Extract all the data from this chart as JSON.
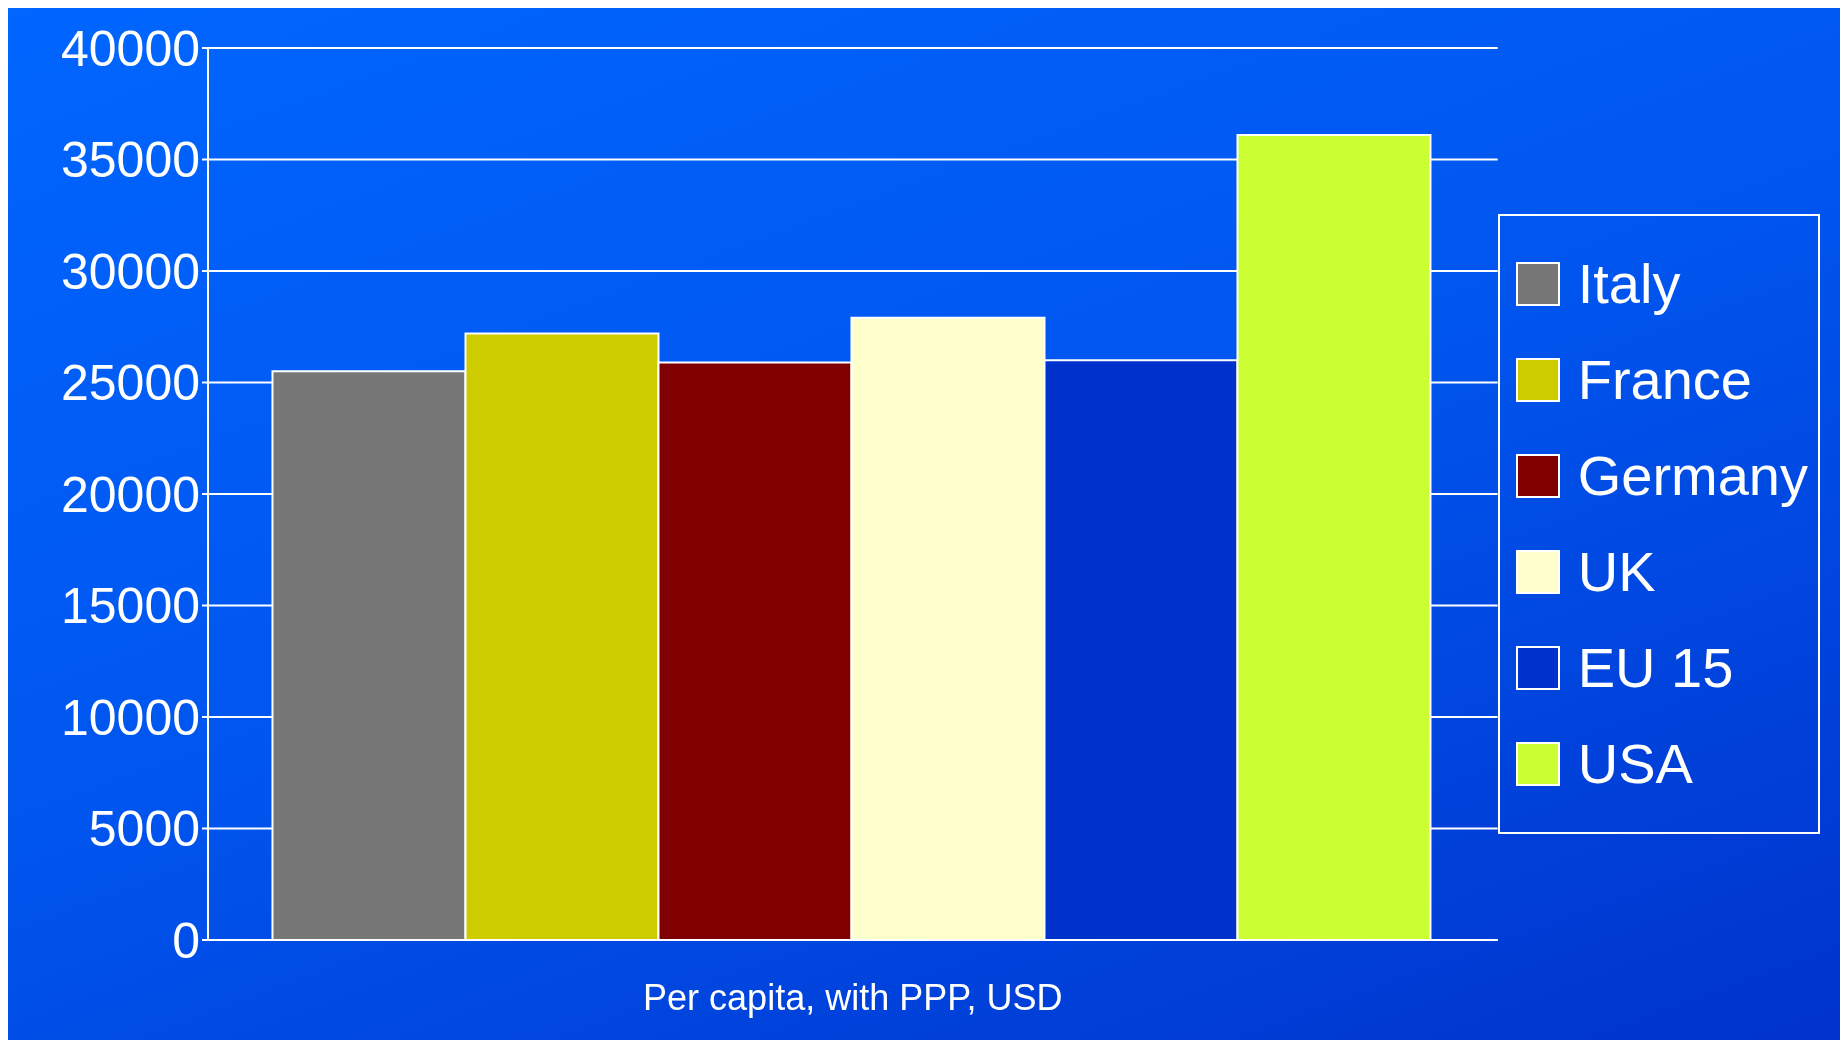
{
  "chart_data": {
    "type": "bar",
    "xlabel": "Per capita, with PPP, USD",
    "categories": [
      null
    ],
    "series": [
      {
        "name": "Italy",
        "color": "#777777",
        "values": [
          25500
        ]
      },
      {
        "name": "France",
        "color": "#cccc00",
        "values": [
          27200
        ]
      },
      {
        "name": "Germany",
        "color": "#800000",
        "values": [
          25900
        ]
      },
      {
        "name": "UK",
        "color": "#ffffcc",
        "values": [
          27900
        ]
      },
      {
        "name": "EU 15",
        "color": "#0033cc",
        "values": [
          26000
        ]
      },
      {
        "name": "USA",
        "color": "#ccff33",
        "values": [
          36100
        ]
      }
    ],
    "ylim": [
      0,
      40000
    ],
    "yticks": [
      0,
      5000,
      10000,
      15000,
      20000,
      25000,
      30000,
      35000,
      40000
    ],
    "grid": "y",
    "legend": "right",
    "tick_labels": "y"
  }
}
